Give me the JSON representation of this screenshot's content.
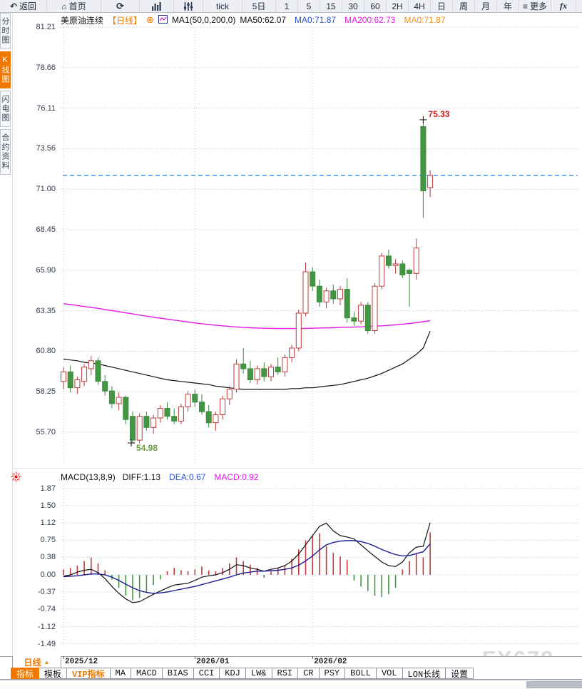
{
  "colors": {
    "accent_orange": "#f07800",
    "up_red": "#c23a3a",
    "down_green": "#449544",
    "ma50_black": "#111111",
    "ma200_magenta": "#e81ce8",
    "price_line_blue": "#1d80e8",
    "diff_black": "#111111",
    "dea_navy": "#1c1c96",
    "value_blue": "#2b50d0",
    "high_label_red": "#cc2020",
    "low_label_green": "#6f9c43",
    "watermark_gray": "#d9dbde"
  },
  "top_toolbar": {
    "items": [
      {
        "name": "back-button",
        "label": "返回",
        "icon": "back-arrow-icon"
      },
      {
        "name": "home-button",
        "label": "首页",
        "icon": "home-icon"
      },
      {
        "name": "refresh-button",
        "label": "",
        "icon": "refresh-icon"
      },
      {
        "name": "chart-style-button",
        "label": "",
        "icon": "bar-chart-icon"
      },
      {
        "name": "indicator-settings-button",
        "label": "",
        "icon": "indicator-icon"
      },
      {
        "name": "interval-tick",
        "label": "tick"
      },
      {
        "name": "interval-5d",
        "label": "5日"
      },
      {
        "name": "interval-1",
        "label": "1"
      },
      {
        "name": "interval-5",
        "label": "5"
      },
      {
        "name": "interval-15",
        "label": "15"
      },
      {
        "name": "interval-30",
        "label": "30"
      },
      {
        "name": "interval-60",
        "label": "60"
      },
      {
        "name": "interval-2h",
        "label": "2H"
      },
      {
        "name": "interval-4h",
        "label": "4H"
      },
      {
        "name": "interval-day",
        "label": "日"
      },
      {
        "name": "interval-week",
        "label": "周"
      },
      {
        "name": "interval-month",
        "label": "月"
      },
      {
        "name": "interval-year",
        "label": "年"
      },
      {
        "name": "more-button",
        "label": "更多",
        "icon": "menu-icon"
      },
      {
        "name": "fx-button",
        "label": "",
        "icon": "fx-icon"
      }
    ]
  },
  "sidebar": {
    "items": [
      {
        "name": "tab-timeshare-chart",
        "label": "分时图",
        "active": false
      },
      {
        "name": "tab-kline-chart",
        "label": "K线图",
        "active": true
      },
      {
        "name": "tab-lightning-chart",
        "label": "闪电图",
        "active": false
      },
      {
        "name": "tab-contract-info",
        "label": "合约资料",
        "active": false
      }
    ]
  },
  "chart_header": {
    "symbol": "美原油连续",
    "period_tag": "【日线】",
    "add_glyph": "⊕",
    "ma_settings": "MA1(50,0,200,0)",
    "ma_values": [
      {
        "label": "MA50:62.07",
        "color": "#111111"
      },
      {
        "label": "MA0:71.87",
        "color": "#2b50d0"
      },
      {
        "label": "MA200:62.73",
        "color": "#e81ce8"
      },
      {
        "label": "MA0:71.87",
        "color": "#f09018"
      }
    ]
  },
  "macd_header": {
    "title": "MACD(13,8,9)",
    "values": [
      {
        "label": "DIFF:1.13",
        "color": "#111111"
      },
      {
        "label": "DEA:0.67",
        "color": "#2b50d0"
      },
      {
        "label": "MACD:0.92",
        "color": "#e81ce8"
      }
    ]
  },
  "bottom": {
    "period_selector": "日线",
    "period_arrow": "▲",
    "tabs": [
      {
        "name": "tab-indicator",
        "label": "指标",
        "style": "active"
      },
      {
        "name": "tab-template",
        "label": "模板",
        "style": ""
      },
      {
        "name": "tab-vip-indicator",
        "label": "VIP指标",
        "style": "vip"
      },
      {
        "name": "tab-ma",
        "label": "MA",
        "style": ""
      },
      {
        "name": "tab-macd",
        "label": "MACD",
        "style": ""
      },
      {
        "name": "tab-bias",
        "label": "BIAS",
        "style": ""
      },
      {
        "name": "tab-cci",
        "label": "CCI",
        "style": ""
      },
      {
        "name": "tab-kdj",
        "label": "KDJ",
        "style": ""
      },
      {
        "name": "tab-lw",
        "label": "LW&",
        "style": ""
      },
      {
        "name": "tab-rsi",
        "label": "RSI",
        "style": ""
      },
      {
        "name": "tab-cr",
        "label": "CR",
        "style": ""
      },
      {
        "name": "tab-psy",
        "label": "PSY",
        "style": ""
      },
      {
        "name": "tab-boll",
        "label": "BOLL",
        "style": ""
      },
      {
        "name": "tab-vol",
        "label": "VOL",
        "style": ""
      },
      {
        "name": "tab-lon",
        "label": "LON长线",
        "style": ""
      },
      {
        "name": "tab-settings",
        "label": "设置",
        "style": ""
      }
    ]
  },
  "watermark": "FX678",
  "chart_data": {
    "type": "candlestick+macd",
    "main": {
      "y_ticks": [
        "81.21",
        "78.66",
        "76.11",
        "73.56",
        "71.00",
        "68.45",
        "65.90",
        "63.35",
        "60.80",
        "58.25",
        "55.70"
      ],
      "ylim": [
        54.4,
        82.4
      ],
      "last_price": 71.87,
      "high_annotation": "75.33",
      "high_index": 52,
      "low_annotation": "54.98",
      "low_index": 10,
      "candles": [
        [
          58.9,
          59.8,
          58.4,
          59.5
        ],
        [
          59.5,
          59.9,
          58.2,
          58.5
        ],
        [
          58.5,
          59.2,
          58.1,
          59.0
        ],
        [
          58.9,
          60.0,
          58.6,
          59.8
        ],
        [
          59.7,
          60.5,
          59.3,
          60.2
        ],
        [
          60.2,
          60.4,
          58.7,
          58.9
        ],
        [
          58.9,
          59.3,
          58.0,
          58.3
        ],
        [
          58.3,
          58.6,
          57.2,
          57.5
        ],
        [
          57.5,
          58.2,
          57.1,
          57.9
        ],
        [
          57.9,
          58.0,
          56.2,
          56.5
        ],
        [
          56.7,
          57.0,
          54.98,
          55.2
        ],
        [
          55.2,
          56.9,
          55.0,
          56.7
        ],
        [
          56.7,
          57.0,
          55.8,
          56.0
        ],
        [
          56.0,
          56.8,
          55.6,
          56.6
        ],
        [
          56.6,
          57.4,
          56.3,
          57.2
        ],
        [
          57.2,
          57.6,
          56.5,
          56.7
        ],
        [
          56.7,
          57.2,
          56.2,
          56.4
        ],
        [
          56.4,
          57.5,
          56.2,
          57.3
        ],
        [
          57.3,
          58.3,
          57.0,
          58.1
        ],
        [
          58.1,
          58.4,
          57.3,
          57.6
        ],
        [
          57.6,
          58.1,
          56.8,
          57.0
        ],
        [
          57.0,
          57.4,
          56.0,
          56.3
        ],
        [
          56.3,
          57.0,
          55.8,
          56.8
        ],
        [
          56.8,
          58.0,
          56.5,
          57.8
        ],
        [
          57.8,
          58.6,
          57.4,
          58.4
        ],
        [
          58.4,
          60.3,
          58.2,
          60.0
        ],
        [
          60.0,
          61.0,
          59.4,
          59.7
        ],
        [
          59.7,
          60.2,
          58.8,
          59.0
        ],
        [
          59.0,
          59.9,
          58.7,
          59.7
        ],
        [
          59.7,
          60.1,
          58.9,
          59.2
        ],
        [
          59.2,
          60.0,
          58.9,
          59.8
        ],
        [
          59.8,
          60.4,
          59.3,
          59.5
        ],
        [
          59.5,
          60.6,
          59.2,
          60.4
        ],
        [
          60.4,
          61.2,
          60.1,
          61.0
        ],
        [
          61.0,
          63.4,
          60.8,
          63.2
        ],
        [
          63.2,
          66.4,
          63.0,
          65.8
        ],
        [
          65.8,
          66.1,
          64.6,
          64.9
        ],
        [
          64.9,
          65.3,
          63.6,
          63.9
        ],
        [
          63.9,
          64.8,
          63.5,
          64.6
        ],
        [
          64.6,
          65.0,
          63.8,
          64.1
        ],
        [
          64.1,
          64.9,
          63.7,
          64.7
        ],
        [
          64.7,
          65.4,
          62.6,
          62.9
        ],
        [
          62.9,
          63.3,
          62.4,
          62.7
        ],
        [
          62.7,
          63.9,
          62.5,
          63.7
        ],
        [
          63.7,
          63.9,
          61.9,
          62.1
        ],
        [
          62.1,
          65.1,
          61.9,
          64.9
        ],
        [
          64.9,
          67.0,
          64.7,
          66.8
        ],
        [
          66.8,
          67.2,
          66.0,
          66.2
        ],
        [
          66.2,
          66.6,
          65.7,
          66.3
        ],
        [
          66.3,
          66.5,
          65.4,
          65.6
        ],
        [
          65.9,
          66.0,
          63.6,
          65.7
        ],
        [
          65.7,
          67.9,
          65.3,
          67.3
        ],
        [
          74.95,
          75.33,
          69.2,
          70.9
        ],
        [
          71.1,
          72.2,
          70.5,
          71.87
        ]
      ],
      "ma50": [
        60.3,
        60.25,
        60.2,
        60.1,
        60.05,
        60.0,
        59.9,
        59.8,
        59.7,
        59.6,
        59.5,
        59.4,
        59.3,
        59.2,
        59.1,
        59.0,
        58.95,
        58.9,
        58.85,
        58.8,
        58.75,
        58.7,
        58.6,
        58.55,
        58.5,
        58.45,
        58.4,
        58.4,
        58.4,
        58.4,
        58.4,
        58.4,
        58.4,
        58.45,
        58.45,
        58.5,
        58.5,
        58.55,
        58.6,
        58.65,
        58.7,
        58.8,
        58.9,
        59.0,
        59.1,
        59.25,
        59.4,
        59.6,
        59.8,
        60.0,
        60.3,
        60.6,
        61.0,
        62.07
      ],
      "ma200": [
        63.8,
        63.74,
        63.68,
        63.62,
        63.56,
        63.5,
        63.43,
        63.36,
        63.29,
        63.22,
        63.15,
        63.08,
        63.01,
        62.94,
        62.88,
        62.82,
        62.76,
        62.7,
        62.64,
        62.58,
        62.53,
        62.48,
        62.44,
        62.4,
        62.36,
        62.33,
        62.3,
        62.28,
        62.26,
        62.25,
        62.24,
        62.23,
        62.23,
        62.23,
        62.23,
        62.24,
        62.25,
        62.26,
        62.27,
        62.28,
        62.3,
        62.31,
        62.32,
        62.34,
        62.36,
        62.38,
        62.4,
        62.43,
        62.46,
        62.5,
        62.55,
        62.6,
        62.66,
        62.73
      ]
    },
    "macd": {
      "y_ticks": [
        "1.87",
        "1.50",
        "1.12",
        "0.75",
        "0.38",
        "0.00",
        "-0.37",
        "-0.74",
        "-1.12",
        "-1.49"
      ],
      "diff": [
        -0.03,
        0.0,
        0.06,
        0.1,
        0.12,
        0.05,
        -0.08,
        -0.25,
        -0.4,
        -0.52,
        -0.6,
        -0.58,
        -0.5,
        -0.42,
        -0.35,
        -0.28,
        -0.22,
        -0.2,
        -0.18,
        -0.12,
        -0.05,
        -0.02,
        0.0,
        0.05,
        0.12,
        0.22,
        0.2,
        0.15,
        0.12,
        0.08,
        0.12,
        0.15,
        0.2,
        0.3,
        0.45,
        0.65,
        0.85,
        1.05,
        1.12,
        0.95,
        0.85,
        0.82,
        0.78,
        0.65,
        0.52,
        0.4,
        0.28,
        0.2,
        0.18,
        0.28,
        0.48,
        0.6,
        0.62,
        1.13
      ],
      "dea": [
        -0.04,
        -0.03,
        -0.02,
        0.0,
        0.02,
        0.02,
        0.0,
        -0.05,
        -0.12,
        -0.2,
        -0.28,
        -0.34,
        -0.38,
        -0.4,
        -0.39,
        -0.37,
        -0.34,
        -0.31,
        -0.28,
        -0.25,
        -0.21,
        -0.17,
        -0.13,
        -0.09,
        -0.05,
        0.0,
        0.04,
        0.06,
        0.08,
        0.08,
        0.09,
        0.1,
        0.12,
        0.15,
        0.21,
        0.3,
        0.41,
        0.54,
        0.65,
        0.7,
        0.73,
        0.74,
        0.74,
        0.72,
        0.68,
        0.62,
        0.55,
        0.49,
        0.44,
        0.41,
        0.42,
        0.46,
        0.5,
        0.67
      ],
      "hist": [
        0.12,
        0.15,
        0.2,
        0.3,
        0.37,
        0.25,
        0.1,
        -0.1,
        -0.28,
        -0.45,
        -0.55,
        -0.5,
        -0.38,
        -0.22,
        -0.1,
        0.08,
        0.15,
        0.1,
        0.08,
        0.12,
        0.18,
        0.1,
        0.08,
        0.15,
        0.25,
        0.38,
        0.3,
        0.22,
        0.15,
        -0.06,
        0.1,
        0.15,
        0.2,
        0.35,
        0.55,
        0.75,
        0.85,
        0.9,
        0.62,
        0.48,
        0.4,
        0.32,
        -0.12,
        -0.25,
        -0.35,
        -0.45,
        -0.48,
        -0.42,
        -0.28,
        0.12,
        0.3,
        0.45,
        0.38,
        0.92
      ],
      "grid": true
    },
    "x_labels": [
      {
        "label": "2025/12",
        "index": 0
      },
      {
        "label": "2026/01",
        "index": 19
      },
      {
        "label": "2026/02",
        "index": 36
      }
    ]
  }
}
